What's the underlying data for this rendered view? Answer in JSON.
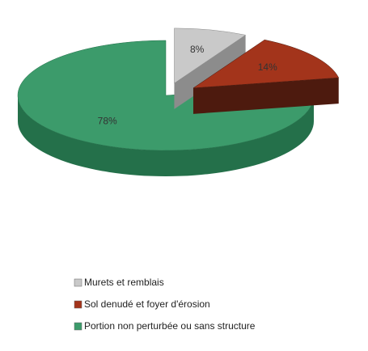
{
  "chart_data": {
    "type": "pie",
    "categories": [
      "Murets et remblais",
      "Sol denudé et foyer d'érosion",
      "Portion non perturbée ou sans structure"
    ],
    "values": [
      8,
      14,
      78
    ],
    "value_labels": [
      "8%",
      "14%",
      "78%"
    ],
    "colors": [
      "#c9c9c9",
      "#a3341b",
      "#3c9b6b"
    ],
    "side_colors": [
      "#8c8c8c",
      "#4d1a0e",
      "#24704a"
    ],
    "exploded": [
      true,
      true,
      false
    ]
  }
}
